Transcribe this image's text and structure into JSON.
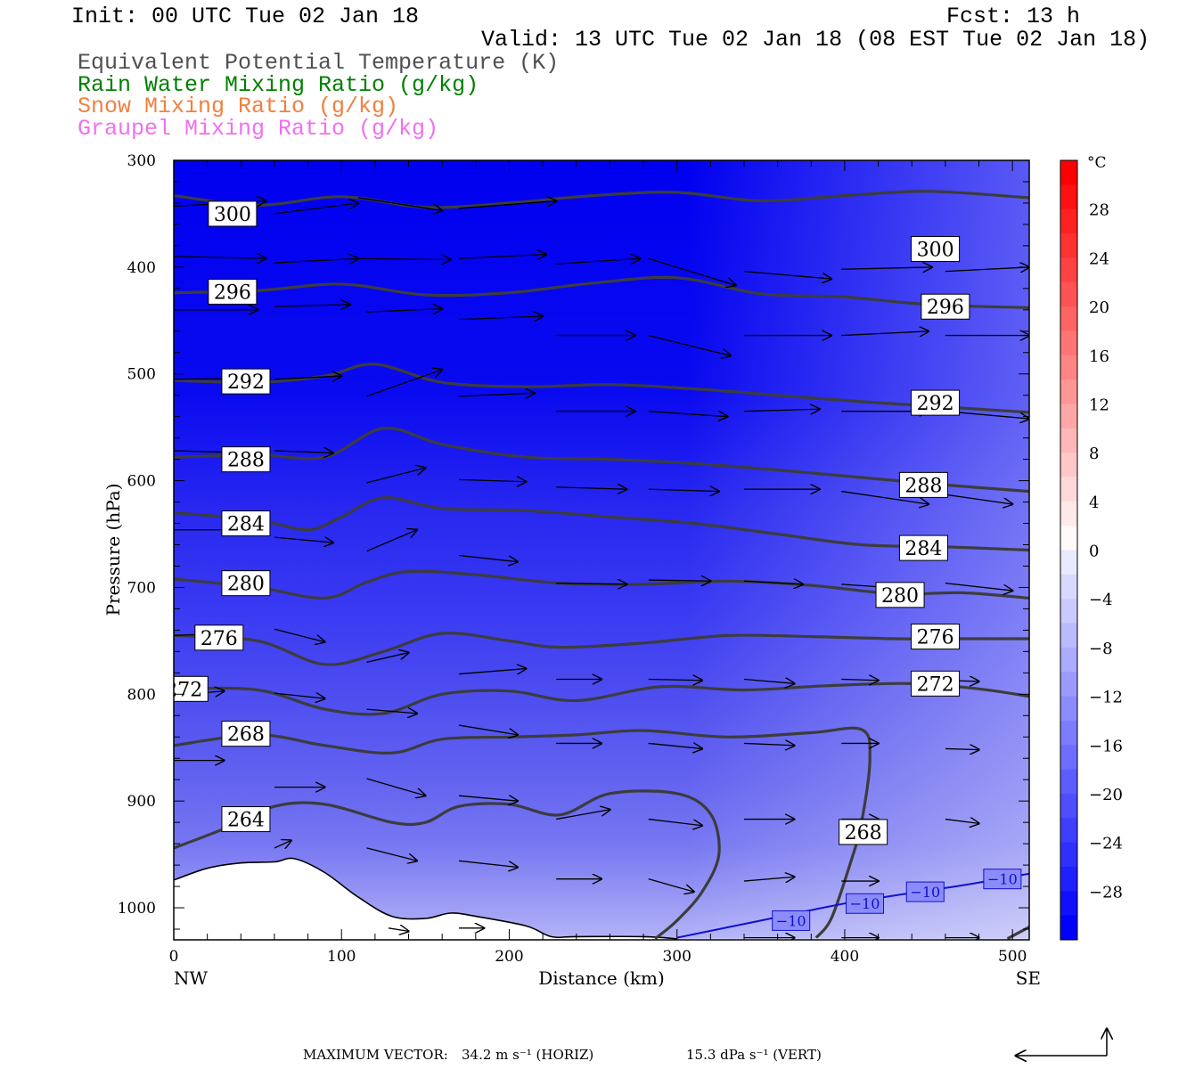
{
  "header": {
    "init": "Init: 00 UTC Tue 02 Jan 18",
    "fcst": "Fcst:   13 h",
    "valid": "Valid: 13 UTC Tue 02 Jan 18 (08 EST Tue 02 Jan 18)"
  },
  "legend": [
    {
      "label": "Equivalent Potential Temperature (K)",
      "color": "#505050"
    },
    {
      "label": "Rain Water Mixing Ratio (g/kg)",
      "color": "#008000"
    },
    {
      "label": "Snow Mixing Ratio (g/kg)",
      "color": "#f08040"
    },
    {
      "label": "Graupel Mixing Ratio (g/kg)",
      "color": "#f070f0"
    }
  ],
  "chart_data": {
    "type": "cross-section contour",
    "xlabel": "Distance (km)",
    "ylabel": "Pressure (hPa)",
    "x_left_label": "NW",
    "x_right_label": "SE",
    "xlim": [
      0,
      510
    ],
    "ylim": [
      1030,
      300
    ],
    "x_ticks": [
      0,
      100,
      200,
      300,
      400,
      500
    ],
    "y_ticks": [
      300,
      400,
      500,
      600,
      700,
      800,
      900,
      1000
    ],
    "fill_field": "Temperature (°C)",
    "colorbar": {
      "unit": "°C",
      "levels": [
        -32,
        -30,
        -28,
        -26,
        -24,
        -22,
        -20,
        -18,
        -16,
        -14,
        -12,
        -10,
        -8,
        -6,
        -4,
        -2,
        0,
        2,
        4,
        6,
        8,
        10,
        12,
        14,
        16,
        18,
        20,
        22,
        24,
        26,
        28,
        30,
        32
      ],
      "tick_labels": [
        28,
        24,
        20,
        16,
        12,
        8,
        4,
        0,
        -4,
        -8,
        -12,
        -16,
        -20,
        -24,
        -28
      ]
    },
    "theta_e_contours": [
      {
        "value": 300,
        "points": [
          [
            0,
            333
          ],
          [
            50,
            342
          ],
          [
            100,
            334
          ],
          [
            150,
            344
          ],
          [
            200,
            340
          ],
          [
            250,
            333
          ],
          [
            300,
            330
          ],
          [
            350,
            338
          ],
          [
            400,
            333
          ],
          [
            450,
            329
          ],
          [
            510,
            335
          ]
        ],
        "labels": [
          [
            35,
            350
          ],
          [
            454,
            383
          ]
        ]
      },
      {
        "value": 296,
        "points": [
          [
            0,
            424
          ],
          [
            50,
            422
          ],
          [
            100,
            416
          ],
          [
            150,
            426
          ],
          [
            200,
            424
          ],
          [
            250,
            415
          ],
          [
            300,
            410
          ],
          [
            350,
            425
          ],
          [
            400,
            428
          ],
          [
            450,
            435
          ],
          [
            510,
            438
          ]
        ],
        "labels": [
          [
            35,
            423
          ],
          [
            460,
            437
          ]
        ]
      },
      {
        "value": 292,
        "points": [
          [
            0,
            506
          ],
          [
            50,
            508
          ],
          [
            90,
            502
          ],
          [
            120,
            491
          ],
          [
            160,
            508
          ],
          [
            210,
            512
          ],
          [
            260,
            510
          ],
          [
            310,
            514
          ],
          [
            360,
            520
          ],
          [
            410,
            526
          ],
          [
            460,
            531
          ],
          [
            510,
            536
          ]
        ],
        "labels": [
          [
            43,
            507
          ],
          [
            454,
            527
          ]
        ]
      },
      {
        "value": 288,
        "points": [
          [
            0,
            578
          ],
          [
            50,
            576
          ],
          [
            90,
            578
          ],
          [
            125,
            551
          ],
          [
            160,
            566
          ],
          [
            210,
            578
          ],
          [
            260,
            580
          ],
          [
            310,
            584
          ],
          [
            360,
            590
          ],
          [
            410,
            597
          ],
          [
            460,
            604
          ],
          [
            510,
            610
          ]
        ],
        "labels": [
          [
            43,
            580
          ],
          [
            447,
            604
          ]
        ]
      },
      {
        "value": 284,
        "points": [
          [
            0,
            630
          ],
          [
            50,
            637
          ],
          [
            80,
            646
          ],
          [
            100,
            634
          ],
          [
            125,
            616
          ],
          [
            160,
            626
          ],
          [
            210,
            628
          ],
          [
            260,
            634
          ],
          [
            310,
            640
          ],
          [
            360,
            650
          ],
          [
            410,
            660
          ],
          [
            460,
            662
          ],
          [
            510,
            665
          ]
        ],
        "labels": [
          [
            43,
            640
          ],
          [
            447,
            663
          ]
        ]
      },
      {
        "value": 280,
        "points": [
          [
            0,
            692
          ],
          [
            50,
            700
          ],
          [
            90,
            710
          ],
          [
            115,
            695
          ],
          [
            140,
            685
          ],
          [
            180,
            688
          ],
          [
            230,
            696
          ],
          [
            280,
            697
          ],
          [
            330,
            694
          ],
          [
            380,
            698
          ],
          [
            430,
            706
          ],
          [
            470,
            705
          ],
          [
            510,
            710
          ]
        ],
        "labels": [
          [
            43,
            696
          ],
          [
            433,
            707
          ]
        ]
      },
      {
        "value": 276,
        "points": [
          [
            0,
            745
          ],
          [
            50,
            750
          ],
          [
            90,
            772
          ],
          [
            125,
            760
          ],
          [
            160,
            743
          ],
          [
            200,
            750
          ],
          [
            230,
            756
          ],
          [
            280,
            752
          ],
          [
            330,
            745
          ],
          [
            380,
            746
          ],
          [
            430,
            748
          ],
          [
            470,
            748
          ],
          [
            510,
            748
          ]
        ],
        "labels": [
          [
            27,
            747
          ],
          [
            454,
            746
          ]
        ]
      },
      {
        "value": 272,
        "points": [
          [
            0,
            795
          ],
          [
            50,
            796
          ],
          [
            90,
            814
          ],
          [
            125,
            818
          ],
          [
            160,
            800
          ],
          [
            200,
            797
          ],
          [
            240,
            806
          ],
          [
            290,
            793
          ],
          [
            340,
            796
          ],
          [
            390,
            792
          ],
          [
            440,
            790
          ],
          [
            480,
            795
          ],
          [
            510,
            802
          ]
        ],
        "labels": [
          [
            6,
            795
          ],
          [
            454,
            790
          ]
        ]
      },
      {
        "value": 268,
        "points": [
          [
            0,
            848
          ],
          [
            50,
            838
          ],
          [
            90,
            848
          ],
          [
            130,
            855
          ],
          [
            160,
            842
          ],
          [
            200,
            840
          ],
          [
            240,
            838
          ],
          [
            280,
            834
          ],
          [
            330,
            840
          ],
          [
            380,
            836
          ],
          [
            410,
            833
          ],
          [
            415,
            860
          ],
          [
            410,
            920
          ],
          [
            403,
            960
          ],
          [
            392,
            1010
          ],
          [
            383,
            1028
          ]
        ],
        "labels": [
          [
            43,
            837
          ],
          [
            411,
            929
          ]
        ]
      },
      {
        "value": 264,
        "points": [
          [
            0,
            944
          ],
          [
            30,
            926
          ],
          [
            60,
            905
          ],
          [
            90,
            903
          ],
          [
            130,
            920
          ],
          [
            150,
            920
          ],
          [
            170,
            905
          ],
          [
            200,
            903
          ],
          [
            230,
            913
          ],
          [
            260,
            893
          ],
          [
            300,
            893
          ],
          [
            320,
            912
          ],
          [
            325,
            950
          ],
          [
            315,
            985
          ],
          [
            300,
            1012
          ],
          [
            287,
            1029
          ]
        ],
        "labels": [
          [
            43,
            917
          ]
        ]
      },
      {
        "value": 260,
        "points": [
          [
            497,
            1029
          ],
          [
            510,
            1018
          ]
        ],
        "labels": []
      }
    ],
    "isotherm_-10C": {
      "points": [
        [
          300,
          1028
        ],
        [
          350,
          1012
        ],
        [
          400,
          996
        ],
        [
          440,
          986
        ],
        [
          470,
          979
        ],
        [
          510,
          968
        ]
      ],
      "labels": [
        [
          368,
          1012
        ],
        [
          412,
          996
        ],
        [
          448,
          985
        ],
        [
          494,
          973
        ]
      ]
    },
    "terrain": [
      [
        0,
        974
      ],
      [
        20,
        963
      ],
      [
        40,
        958
      ],
      [
        60,
        957
      ],
      [
        72,
        954
      ],
      [
        90,
        967
      ],
      [
        110,
        990
      ],
      [
        130,
        1008
      ],
      [
        150,
        1010
      ],
      [
        165,
        1005
      ],
      [
        180,
        1008
      ],
      [
        210,
        1017
      ],
      [
        225,
        1027
      ],
      [
        240,
        1027
      ],
      [
        280,
        1027
      ],
      [
        300,
        1029
      ]
    ],
    "wind_vectors": [
      [
        0,
        343,
        55,
        338
      ],
      [
        60,
        350,
        110,
        340
      ],
      [
        110,
        335,
        160,
        347
      ],
      [
        170,
        345,
        228,
        338
      ],
      [
        0,
        390,
        55,
        392
      ],
      [
        60,
        396,
        110,
        392
      ],
      [
        110,
        392,
        165,
        393
      ],
      [
        170,
        392,
        222,
        388
      ],
      [
        228,
        397,
        278,
        392
      ],
      [
        283,
        392,
        335,
        417
      ],
      [
        340,
        404,
        392,
        411
      ],
      [
        398,
        402,
        452,
        400
      ],
      [
        460,
        404,
        510,
        400
      ],
      [
        0,
        440,
        50,
        440
      ],
      [
        60,
        437,
        105,
        435
      ],
      [
        115,
        442,
        160,
        439
      ],
      [
        170,
        449,
        220,
        446
      ],
      [
        228,
        464,
        275,
        464
      ],
      [
        283,
        464,
        332,
        483
      ],
      [
        340,
        464,
        392,
        464
      ],
      [
        398,
        464,
        450,
        460
      ],
      [
        460,
        464,
        510,
        464
      ],
      [
        0,
        505,
        50,
        504
      ],
      [
        60,
        505,
        100,
        502
      ],
      [
        115,
        521,
        160,
        496
      ],
      [
        170,
        521,
        215,
        518
      ],
      [
        228,
        535,
        275,
        535
      ],
      [
        283,
        535,
        330,
        540
      ],
      [
        340,
        535,
        385,
        533
      ],
      [
        398,
        535,
        450,
        535
      ],
      [
        460,
        535,
        510,
        542
      ],
      [
        0,
        572,
        50,
        574
      ],
      [
        60,
        572,
        95,
        574
      ],
      [
        115,
        602,
        150,
        588
      ],
      [
        170,
        599,
        210,
        601
      ],
      [
        228,
        606,
        270,
        608
      ],
      [
        283,
        608,
        325,
        610
      ],
      [
        340,
        608,
        385,
        608
      ],
      [
        398,
        610,
        450,
        622
      ],
      [
        460,
        613,
        500,
        622
      ],
      [
        0,
        646,
        50,
        646
      ],
      [
        60,
        653,
        95,
        658
      ],
      [
        115,
        666,
        145,
        646
      ],
      [
        170,
        670,
        205,
        676
      ],
      [
        228,
        696,
        270,
        697
      ],
      [
        283,
        693,
        320,
        694
      ],
      [
        340,
        694,
        375,
        697
      ],
      [
        398,
        697,
        435,
        701
      ],
      [
        460,
        696,
        500,
        703
      ],
      [
        0,
        745,
        30,
        743
      ],
      [
        60,
        739,
        90,
        751
      ],
      [
        115,
        770,
        140,
        761
      ],
      [
        170,
        781,
        210,
        776
      ],
      [
        228,
        786,
        255,
        786
      ],
      [
        283,
        786,
        315,
        787
      ],
      [
        340,
        786,
        370,
        790
      ],
      [
        398,
        786,
        420,
        787
      ],
      [
        460,
        787,
        480,
        788
      ],
      [
        0,
        801,
        30,
        797
      ],
      [
        60,
        799,
        90,
        804
      ],
      [
        115,
        814,
        145,
        818
      ],
      [
        170,
        829,
        205,
        838
      ],
      [
        228,
        846,
        255,
        846
      ],
      [
        283,
        846,
        315,
        851
      ],
      [
        340,
        846,
        370,
        848
      ],
      [
        398,
        846,
        420,
        846
      ],
      [
        460,
        851,
        480,
        852
      ],
      [
        0,
        862,
        30,
        862
      ],
      [
        60,
        887,
        90,
        887
      ],
      [
        115,
        879,
        150,
        895
      ],
      [
        170,
        895,
        205,
        900
      ],
      [
        228,
        917,
        260,
        908
      ],
      [
        283,
        917,
        315,
        923
      ],
      [
        340,
        917,
        370,
        917
      ],
      [
        398,
        917,
        420,
        917
      ],
      [
        460,
        917,
        480,
        921
      ],
      [
        60,
        944,
        70,
        937
      ],
      [
        115,
        944,
        145,
        956
      ],
      [
        170,
        956,
        205,
        962
      ],
      [
        228,
        973,
        255,
        973
      ],
      [
        283,
        973,
        310,
        985
      ],
      [
        340,
        975,
        370,
        971
      ],
      [
        398,
        975,
        420,
        975
      ],
      [
        128,
        1019,
        140,
        1022
      ],
      [
        170,
        1019,
        185,
        1019
      ],
      [
        340,
        1028,
        370,
        1028
      ],
      [
        398,
        1028,
        420,
        1028
      ],
      [
        460,
        1028,
        480,
        1028
      ]
    ],
    "max_vector_label": "MAXIMUM VECTOR:",
    "max_vector_horiz": "34.2 m s⁻¹ (HORIZ)",
    "max_vector_vert": "15.3 dPa s⁻¹ (VERT)"
  }
}
